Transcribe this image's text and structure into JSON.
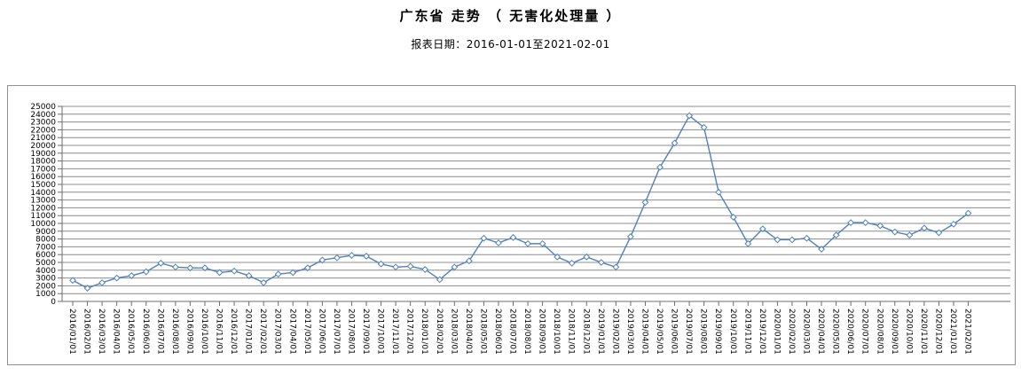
{
  "chart_data": {
    "type": "line",
    "title": "广东省 走势 （ 无害化处理量 ）",
    "subtitle": "报表日期：2016-01-01至2021-02-01",
    "xlabel": "",
    "ylabel": "",
    "ylim": [
      0,
      25000
    ],
    "ytick_step": 1000,
    "grid": true,
    "legend_position": "none",
    "categories": [
      "2016/01/01",
      "2016/02/01",
      "2016/03/01",
      "2016/04/01",
      "2016/05/01",
      "2016/06/01",
      "2016/07/01",
      "2016/08/01",
      "2016/09/01",
      "2016/10/01",
      "2016/11/01",
      "2016/12/01",
      "2017/01/01",
      "2017/02/01",
      "2017/03/01",
      "2017/04/01",
      "2017/05/01",
      "2017/06/01",
      "2017/07/01",
      "2017/08/01",
      "2017/09/01",
      "2017/10/01",
      "2017/11/01",
      "2017/12/01",
      "2018/01/01",
      "2018/02/01",
      "2018/03/01",
      "2018/04/01",
      "2018/05/01",
      "2018/06/01",
      "2018/07/01",
      "2018/08/01",
      "2018/09/01",
      "2018/10/01",
      "2018/11/01",
      "2018/12/01",
      "2019/01/01",
      "2019/02/01",
      "2019/03/01",
      "2019/04/01",
      "2019/05/01",
      "2019/06/01",
      "2019/07/01",
      "2019/08/01",
      "2019/09/01",
      "2019/10/01",
      "2019/11/01",
      "2019/12/01",
      "2020/01/01",
      "2020/02/01",
      "2020/03/01",
      "2020/04/01",
      "2020/05/01",
      "2020/06/01",
      "2020/07/01",
      "2020/08/01",
      "2020/09/01",
      "2020/10/01",
      "2020/11/01",
      "2020/12/01",
      "2021/01/01",
      "2021/02/01"
    ],
    "values": [
      2700,
      1700,
      2400,
      3000,
      3300,
      3800,
      4900,
      4400,
      4300,
      4300,
      3700,
      3900,
      3300,
      2400,
      3500,
      3700,
      4300,
      5300,
      5600,
      5900,
      5800,
      4800,
      4400,
      4500,
      4100,
      2800,
      4400,
      5200,
      8100,
      7500,
      8200,
      7400,
      7400,
      5700,
      4900,
      5700,
      5000,
      4400,
      8300,
      12700,
      17200,
      20300,
      23800,
      22300,
      14000,
      10800,
      7400,
      9300,
      7900,
      7900,
      8100,
      6700,
      8500,
      10100,
      10100,
      9700,
      8900,
      8500,
      9400,
      8800,
      9900,
      11300
    ],
    "colors": {
      "line": "#4f81bd",
      "marker_fill": "#ffffff",
      "grid": "#8c8c8c",
      "axis": "#6e6e6e",
      "border": "#919191",
      "text": "#000000"
    }
  }
}
